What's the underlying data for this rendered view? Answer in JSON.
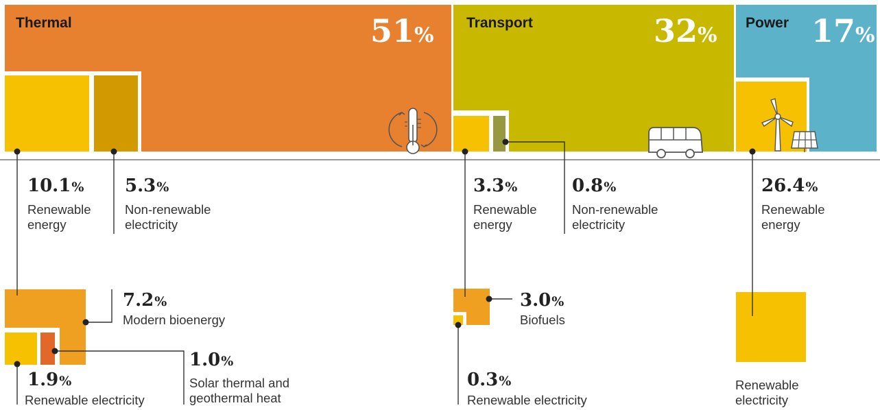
{
  "chart_data": {
    "type": "treemap",
    "sections": [
      {
        "name": "Thermal",
        "share_pct": "51",
        "color": "#E8812F",
        "icon": "thermometer-icon",
        "parts": [
          {
            "value": "10.1",
            "label": [
              "Renewable",
              "energy"
            ],
            "color": "#F6C100"
          },
          {
            "value": "5.3",
            "label": [
              "Non-renewable",
              "electricity"
            ],
            "color": "#D39A00"
          }
        ]
      },
      {
        "name": "Transport",
        "share_pct": "32",
        "color": "#C9B800",
        "icon": "bus-icon",
        "parts": [
          {
            "value": "3.3",
            "label": [
              "Renewable",
              "energy"
            ],
            "color": "#F6C100"
          },
          {
            "value": "0.8",
            "label": [
              "Non-renewable",
              "electricity"
            ],
            "color": "#989840"
          }
        ]
      },
      {
        "name": "Power",
        "share_pct": "17",
        "color": "#5BB2C9",
        "icon": "wind-solar-icon",
        "parts": [
          {
            "value": "26.4",
            "label": [
              "Renewable",
              "energy"
            ],
            "color": "#F6C100"
          }
        ]
      }
    ],
    "breakdowns": [
      {
        "value": "7.2",
        "label": [
          "Modern bioenergy"
        ],
        "color": "#F0A020"
      },
      {
        "value": "1.9",
        "label": [
          "Renewable electricity"
        ],
        "color": "#F6C100"
      },
      {
        "value": "1.0",
        "label": [
          "Solar thermal and",
          "geothermal heat"
        ],
        "color": "#E2682A"
      },
      {
        "value": "3.0",
        "label": [
          "Biofuels"
        ],
        "color": "#F0A020"
      },
      {
        "value": "0.3",
        "label": [
          "Renewable electricity"
        ],
        "color": "#F6C100"
      },
      {
        "value": "",
        "label": [
          "Renewable",
          "electricity"
        ],
        "color": "#F6C100"
      }
    ],
    "unit": "%",
    "colors": {
      "line": "#333333",
      "baseline": "#999999",
      "icon_stroke": "#555555"
    }
  }
}
